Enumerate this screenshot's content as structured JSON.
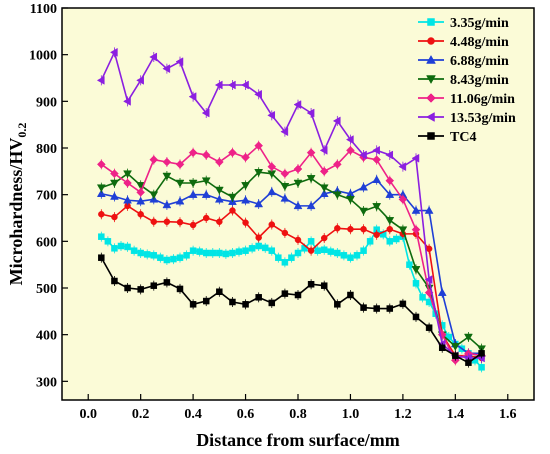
{
  "chart_data": {
    "type": "line",
    "xlabel": "Distance from surface/mm",
    "ylabel": "Microhardness/HV",
    "ylabel_sub": "0.2",
    "xlim": [
      -0.1,
      1.7
    ],
    "ylim": [
      260,
      1100
    ],
    "xticks": [
      0.0,
      0.2,
      0.4,
      0.6,
      0.8,
      1.0,
      1.2,
      1.4,
      1.6
    ],
    "yticks": [
      300,
      400,
      500,
      600,
      700,
      800,
      900,
      1000,
      1100
    ],
    "xtick_labels": [
      "0.0",
      "0.2",
      "0.4",
      "0.6",
      "0.8",
      "1.0",
      "1.2",
      "1.4",
      "1.6"
    ],
    "ytick_labels": [
      "300",
      "400",
      "500",
      "600",
      "700",
      "800",
      "900",
      "1000",
      "1100"
    ],
    "background_color": "#fbfbd7",
    "legend_position": "top-right",
    "series": [
      {
        "name": "3.35g/min",
        "color": "#00e5e5",
        "marker": "square",
        "x": [
          0.05,
          0.075,
          0.1,
          0.125,
          0.15,
          0.175,
          0.2,
          0.225,
          0.25,
          0.275,
          0.3,
          0.325,
          0.35,
          0.375,
          0.4,
          0.425,
          0.45,
          0.475,
          0.5,
          0.525,
          0.55,
          0.575,
          0.6,
          0.625,
          0.65,
          0.675,
          0.7,
          0.725,
          0.75,
          0.775,
          0.8,
          0.825,
          0.85,
          0.875,
          0.9,
          0.925,
          0.95,
          0.975,
          1.0,
          1.025,
          1.05,
          1.075,
          1.1,
          1.125,
          1.15,
          1.175,
          1.2,
          1.225,
          1.25,
          1.275,
          1.3,
          1.325,
          1.35,
          1.375,
          1.4,
          1.425,
          1.45,
          1.475,
          1.5
        ],
        "values": [
          610,
          600,
          585,
          590,
          588,
          580,
          575,
          572,
          570,
          565,
          560,
          562,
          565,
          570,
          580,
          578,
          575,
          575,
          575,
          573,
          575,
          578,
          580,
          585,
          590,
          586,
          580,
          565,
          555,
          565,
          575,
          585,
          600,
          580,
          582,
          578,
          575,
          570,
          565,
          570,
          580,
          600,
          625,
          615,
          600,
          605,
          610,
          550,
          510,
          480,
          470,
          445,
          420,
          395,
          380,
          370,
          360,
          345,
          330
        ]
      },
      {
        "name": "4.48g/min",
        "color": "#ee1111",
        "marker": "circle",
        "x": [
          0.05,
          0.1,
          0.15,
          0.2,
          0.25,
          0.3,
          0.35,
          0.4,
          0.45,
          0.5,
          0.55,
          0.6,
          0.65,
          0.7,
          0.75,
          0.8,
          0.85,
          0.9,
          0.95,
          1.0,
          1.05,
          1.1,
          1.15,
          1.2,
          1.25,
          1.3,
          1.35,
          1.4,
          1.45,
          1.5
        ],
        "values": [
          658,
          652,
          676,
          658,
          642,
          642,
          641,
          635,
          650,
          642,
          666,
          640,
          608,
          636,
          618,
          603,
          580,
          607,
          628,
          626,
          626,
          614,
          626,
          616,
          616,
          584,
          400,
          355,
          355,
          350
        ]
      },
      {
        "name": "6.88g/min",
        "color": "#1f3fd6",
        "marker": "triangle-up",
        "x": [
          0.05,
          0.1,
          0.15,
          0.2,
          0.25,
          0.3,
          0.35,
          0.4,
          0.45,
          0.5,
          0.55,
          0.6,
          0.65,
          0.7,
          0.75,
          0.8,
          0.85,
          0.9,
          0.95,
          1.0,
          1.05,
          1.1,
          1.15,
          1.2,
          1.25,
          1.3,
          1.35,
          1.4,
          1.45,
          1.5
        ],
        "values": [
          702,
          696,
          688,
          686,
          690,
          678,
          686,
          700,
          700,
          690,
          685,
          688,
          680,
          706,
          692,
          676,
          676,
          702,
          708,
          702,
          716,
          732,
          700,
          700,
          666,
          666,
          490,
          380,
          360,
          360
        ]
      },
      {
        "name": "8.43g/min",
        "color": "#0e6b0e",
        "marker": "triangle-down",
        "x": [
          0.05,
          0.1,
          0.15,
          0.2,
          0.25,
          0.3,
          0.35,
          0.4,
          0.45,
          0.5,
          0.55,
          0.6,
          0.65,
          0.7,
          0.75,
          0.8,
          0.85,
          0.9,
          0.95,
          1.0,
          1.05,
          1.1,
          1.15,
          1.2,
          1.25,
          1.3,
          1.35,
          1.4,
          1.45,
          1.5
        ],
        "values": [
          715,
          725,
          745,
          720,
          700,
          740,
          725,
          725,
          730,
          710,
          695,
          720,
          748,
          745,
          718,
          725,
          735,
          715,
          700,
          690,
          665,
          675,
          645,
          625,
          540,
          500,
          400,
          375,
          395,
          370
        ]
      },
      {
        "name": "11.06g/min",
        "color": "#ee2288",
        "marker": "diamond",
        "x": [
          0.05,
          0.1,
          0.15,
          0.2,
          0.25,
          0.3,
          0.35,
          0.4,
          0.45,
          0.5,
          0.55,
          0.6,
          0.65,
          0.7,
          0.75,
          0.8,
          0.85,
          0.9,
          0.95,
          1.0,
          1.05,
          1.1,
          1.15,
          1.2,
          1.25,
          1.3,
          1.35,
          1.4,
          1.45,
          1.5
        ],
        "values": [
          765,
          745,
          725,
          705,
          775,
          770,
          765,
          790,
          785,
          770,
          790,
          780,
          805,
          760,
          745,
          755,
          790,
          750,
          765,
          795,
          780,
          775,
          730,
          690,
          625,
          490,
          400,
          345,
          360,
          355
        ]
      },
      {
        "name": "13.53g/min",
        "color": "#8b1fe0",
        "marker": "triangle-left",
        "x": [
          0.05,
          0.1,
          0.15,
          0.2,
          0.25,
          0.3,
          0.35,
          0.4,
          0.45,
          0.5,
          0.55,
          0.6,
          0.65,
          0.7,
          0.75,
          0.8,
          0.85,
          0.9,
          0.95,
          1.0,
          1.05,
          1.1,
          1.15,
          1.2,
          1.25,
          1.3,
          1.35,
          1.4,
          1.45,
          1.5
        ],
        "values": [
          945,
          1005,
          900,
          945,
          995,
          970,
          985,
          910,
          875,
          935,
          935,
          935,
          915,
          870,
          835,
          893,
          875,
          795,
          858,
          818,
          785,
          795,
          785,
          760,
          778,
          518,
          380,
          355,
          350,
          350
        ]
      },
      {
        "name": "TC4",
        "color": "#000000",
        "marker": "square",
        "x": [
          0.05,
          0.1,
          0.15,
          0.2,
          0.25,
          0.3,
          0.35,
          0.4,
          0.45,
          0.5,
          0.55,
          0.6,
          0.65,
          0.7,
          0.75,
          0.8,
          0.85,
          0.9,
          0.95,
          1.0,
          1.05,
          1.1,
          1.15,
          1.2,
          1.25,
          1.3,
          1.35,
          1.4,
          1.45,
          1.5
        ],
        "values": [
          565,
          515,
          500,
          497,
          505,
          512,
          498,
          465,
          472,
          492,
          470,
          465,
          480,
          468,
          488,
          485,
          508,
          505,
          465,
          485,
          458,
          456,
          456,
          466,
          438,
          415,
          372,
          355,
          340,
          360
        ]
      }
    ]
  }
}
